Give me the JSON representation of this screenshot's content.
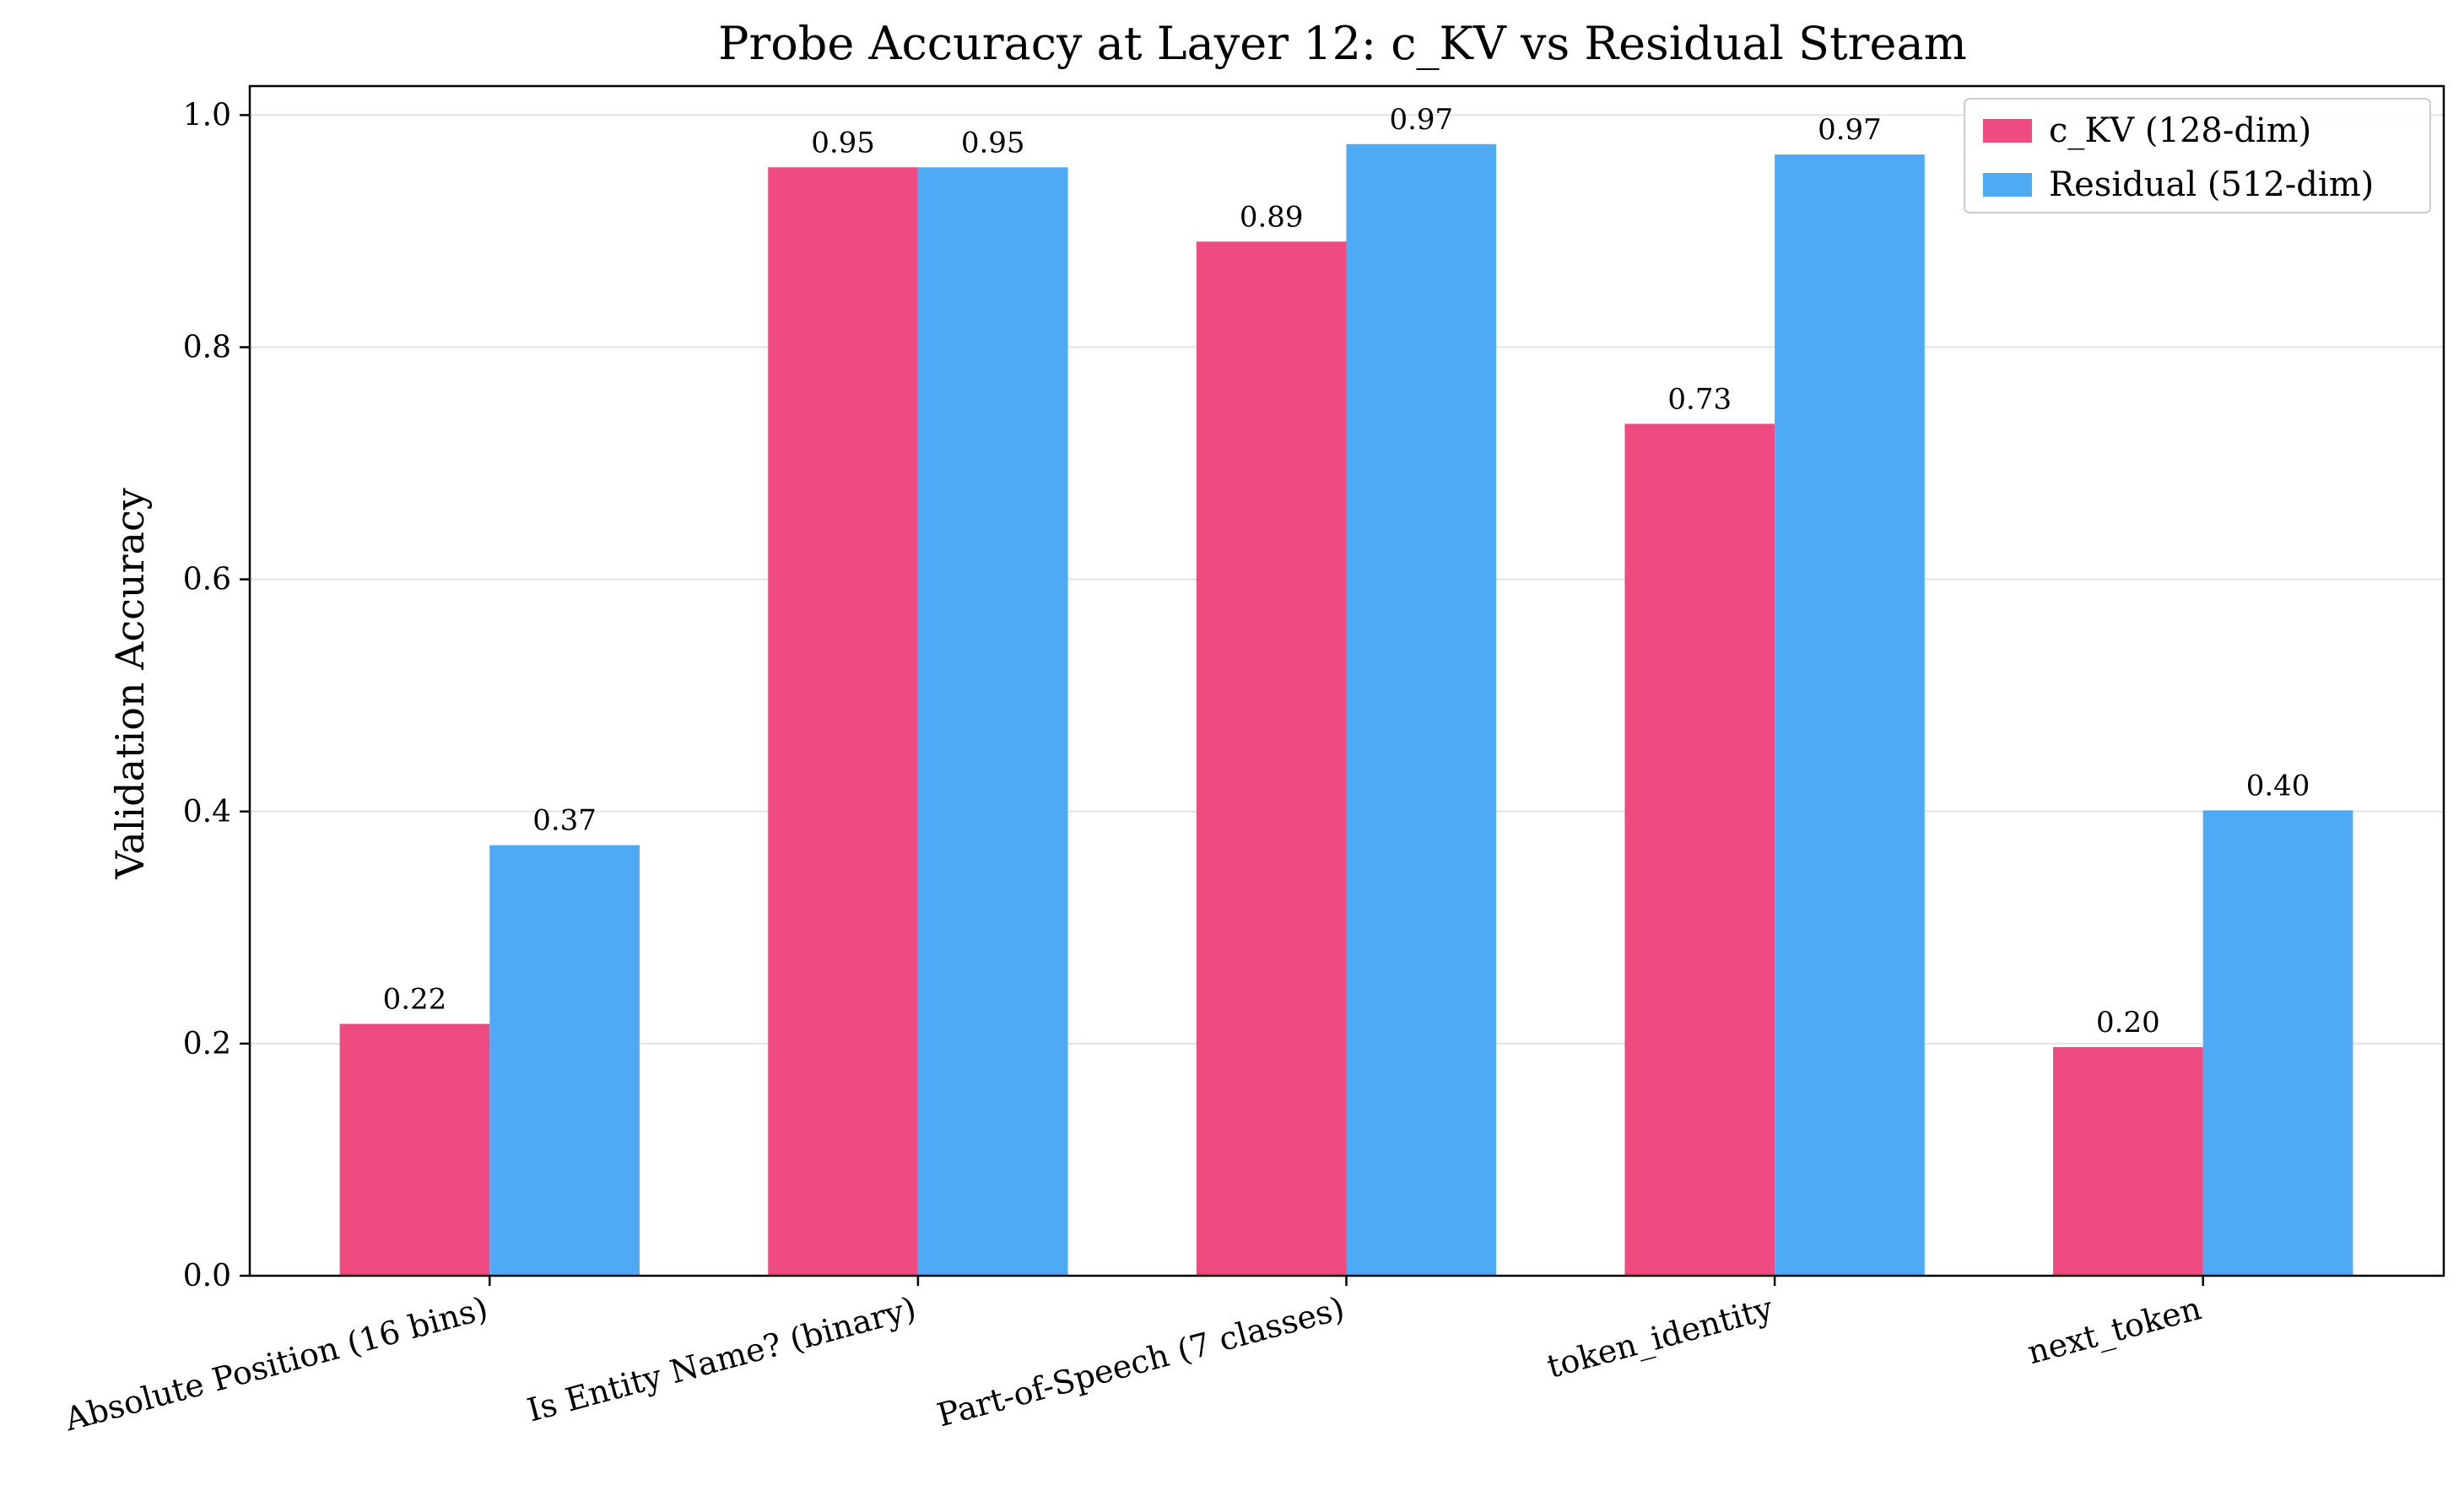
{
  "chart_data": {
    "type": "bar",
    "title": "Probe Accuracy at Layer 12: c_KV vs Residual Stream",
    "xlabel": "",
    "ylabel": "Validation Accuracy",
    "ylim": [
      0,
      1.025
    ],
    "yticks": [
      "0.0",
      "0.2",
      "0.4",
      "0.6",
      "0.8",
      "1.0"
    ],
    "ytick_values": [
      0.0,
      0.2,
      0.4,
      0.6,
      0.8,
      1.0
    ],
    "grid": true,
    "legend_position": "top-right",
    "categories": [
      "Absolute Position (16 bins)",
      "Is Entity Name? (binary)",
      "Part-of-Speech (7 classes)",
      "token_identity",
      "next_token"
    ],
    "series": [
      {
        "name": "c_KV (128-dim)",
        "color": "#ee4c81",
        "values": [
          0.217,
          0.955,
          0.891,
          0.734,
          0.197
        ],
        "labels": [
          "0.22",
          "0.95",
          "0.89",
          "0.73",
          "0.20"
        ]
      },
      {
        "name": "Residual (512-dim)",
        "color": "#4eaaf4",
        "values": [
          0.371,
          0.955,
          0.975,
          0.966,
          0.401
        ],
        "labels": [
          "0.37",
          "0.95",
          "0.97",
          "0.97",
          "0.40"
        ]
      }
    ]
  }
}
